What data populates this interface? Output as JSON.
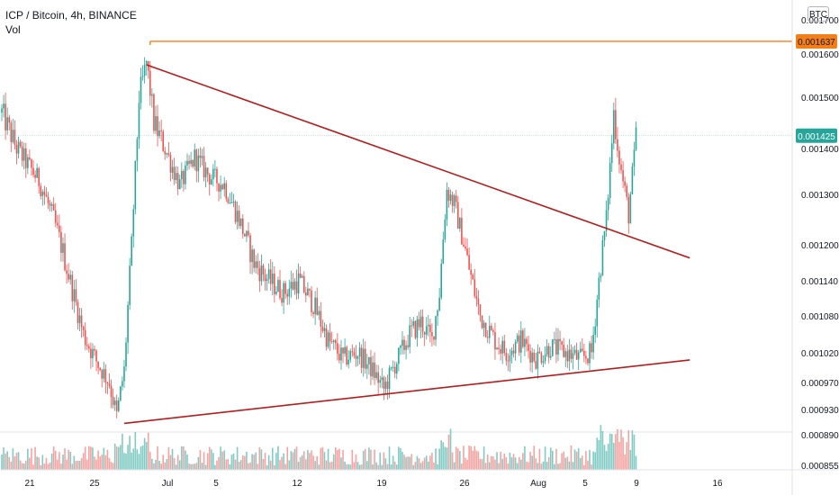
{
  "chart_data": {
    "type": "candlestick",
    "title": "ICP / Bitcoin, 4h, BINANCE",
    "volume_label": "Vol",
    "currency_badge": "BTC",
    "y_ticks": [
      {
        "value": 0.0017,
        "label": "0.001700"
      },
      {
        "value": 0.0016,
        "label": "0.001600"
      },
      {
        "value": 0.0015,
        "label": "0.001500"
      },
      {
        "value": 0.0014,
        "label": "0.001400"
      },
      {
        "value": 0.0013,
        "label": "0.001300"
      },
      {
        "value": 0.0012,
        "label": "0.001200"
      },
      {
        "value": 0.00114,
        "label": "0.001140"
      },
      {
        "value": 0.00108,
        "label": "0.001080"
      },
      {
        "value": 0.00102,
        "label": "0.001020"
      },
      {
        "value": 0.00097,
        "label": "0.000970"
      },
      {
        "value": 0.00093,
        "label": "0.000930"
      },
      {
        "value": 0.00089,
        "label": "0.000890"
      },
      {
        "value": 0.000855,
        "label": "0.000855"
      }
    ],
    "x_ticks": [
      {
        "index": 0,
        "label": "21"
      },
      {
        "index": 1,
        "label": "25"
      },
      {
        "index": 2,
        "label": "Jul"
      },
      {
        "index": 3,
        "label": "5"
      },
      {
        "index": 4,
        "label": "12"
      },
      {
        "index": 5,
        "label": "19"
      },
      {
        "index": 6,
        "label": "26"
      },
      {
        "index": 7,
        "label": "Aug"
      },
      {
        "index": 8,
        "label": "5"
      },
      {
        "index": 9,
        "label": "9"
      },
      {
        "index": 10,
        "label": "16"
      }
    ],
    "price_anchors": [
      [
        0,
        0.00147
      ],
      [
        8,
        0.0014
      ],
      [
        20,
        0.00133
      ],
      [
        28,
        0.00125
      ],
      [
        36,
        0.00115
      ],
      [
        44,
        0.00105
      ],
      [
        52,
        0.001
      ],
      [
        58,
        0.00097
      ],
      [
        62,
        0.00092
      ],
      [
        66,
        0.00099
      ],
      [
        70,
        0.0012
      ],
      [
        74,
        0.0015
      ],
      [
        78,
        0.00158
      ],
      [
        82,
        0.00145
      ],
      [
        88,
        0.0014
      ],
      [
        96,
        0.00132
      ],
      [
        104,
        0.00138
      ],
      [
        112,
        0.00134
      ],
      [
        120,
        0.00132
      ],
      [
        128,
        0.00125
      ],
      [
        136,
        0.00117
      ],
      [
        144,
        0.00114
      ],
      [
        152,
        0.00112
      ],
      [
        160,
        0.00114
      ],
      [
        168,
        0.0011
      ],
      [
        176,
        0.00104
      ],
      [
        184,
        0.00101
      ],
      [
        192,
        0.00102
      ],
      [
        200,
        0.00099
      ],
      [
        206,
        0.00096
      ],
      [
        212,
        0.001
      ],
      [
        220,
        0.00105
      ],
      [
        226,
        0.00107
      ],
      [
        232,
        0.00104
      ],
      [
        236,
        0.00112
      ],
      [
        240,
        0.00131
      ],
      [
        244,
        0.00128
      ],
      [
        248,
        0.00122
      ],
      [
        252,
        0.00116
      ],
      [
        258,
        0.00108
      ],
      [
        266,
        0.00104
      ],
      [
        272,
        0.00102
      ],
      [
        280,
        0.00104
      ],
      [
        288,
        0.00101
      ],
      [
        296,
        0.00103
      ],
      [
        304,
        0.00102
      ],
      [
        312,
        0.00101
      ],
      [
        318,
        0.00102
      ],
      [
        322,
        0.00114
      ],
      [
        326,
        0.00125
      ],
      [
        330,
        0.00147
      ],
      [
        334,
        0.00135
      ],
      [
        338,
        0.00126
      ],
      [
        342,
        0.00142
      ]
    ],
    "horizontal_level": {
      "value": 0.001637,
      "label": "0.001637",
      "color": "#f57f17"
    },
    "current_price": {
      "value": 0.001425,
      "label": "0.001425",
      "color": "#26a69a"
    },
    "trend_lines": [
      {
        "name": "upper",
        "from": [
          78,
          0.001575
        ],
        "to": [
          371,
          0.001178
        ],
        "color": "#b71c1c"
      },
      {
        "name": "lower",
        "from": [
          66,
          0.000908
        ],
        "to": [
          371,
          0.001008
        ],
        "color": "#b71c1c"
      }
    ],
    "colors": {
      "up": "#26a69a",
      "down": "#ef5350",
      "vol_up": "#80cbc4",
      "vol_down": "#f5a3a1"
    }
  }
}
